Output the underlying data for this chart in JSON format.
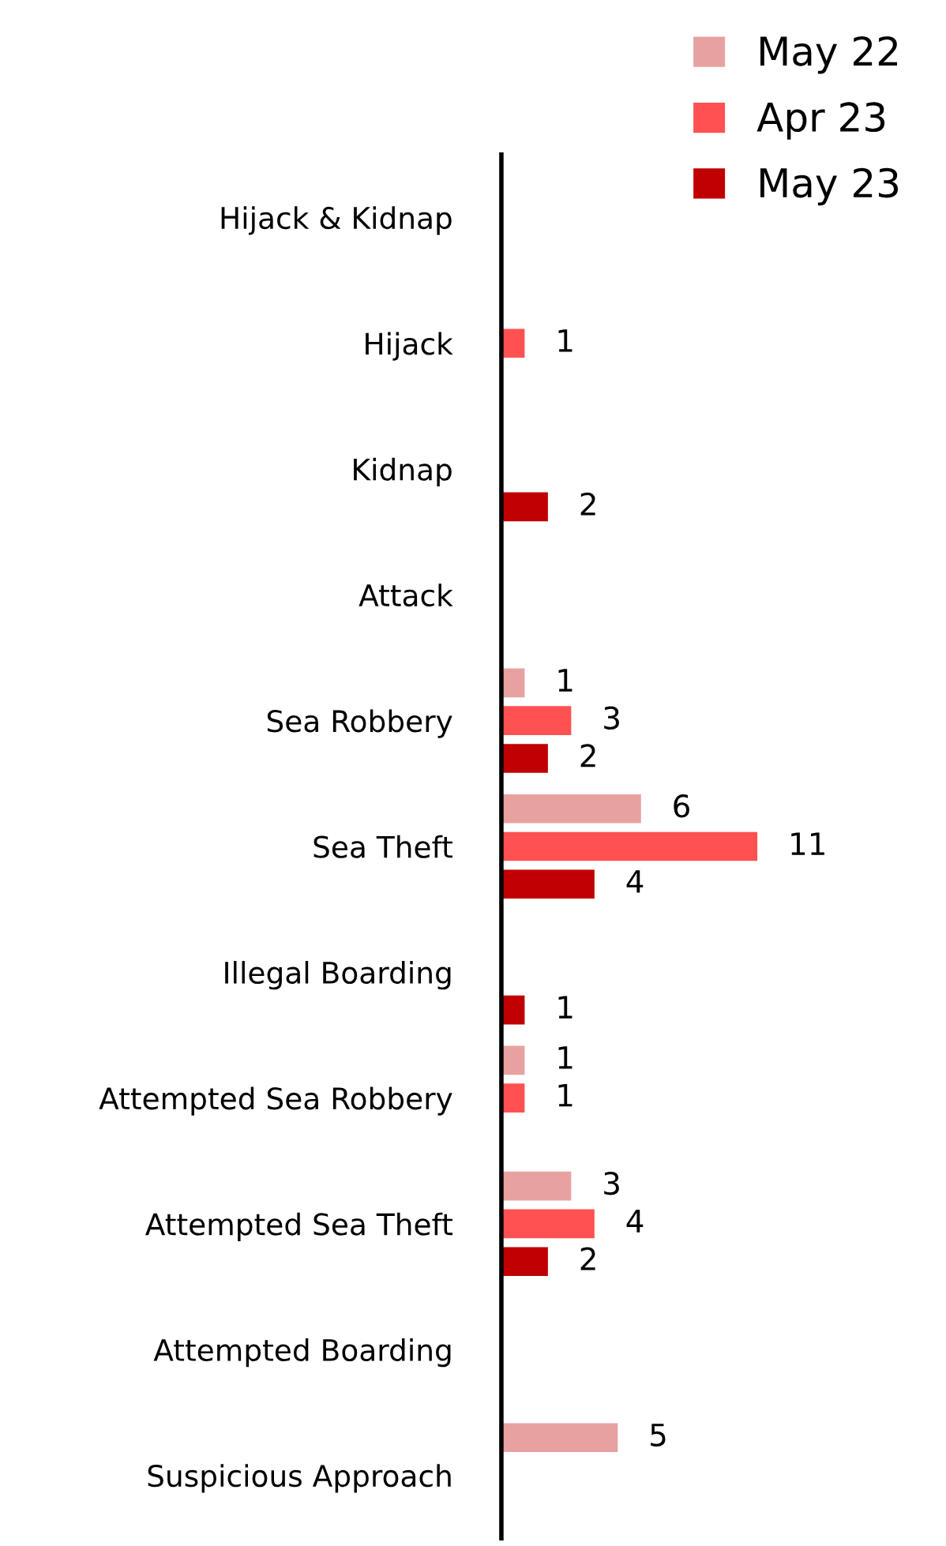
{
  "chart_data": {
    "type": "bar",
    "orientation": "horizontal",
    "categories": [
      "Hijack & Kidnap",
      "Hijack",
      "Kidnap",
      "Attack",
      "Sea Robbery",
      "Sea Theft",
      "Illegal Boarding",
      "Attempted Sea Robbery",
      "Attempted Sea Theft",
      "Attempted Boarding",
      "Suspicious Approach"
    ],
    "series": [
      {
        "name": "May 22",
        "color": "#e8a1a1",
        "values": [
          null,
          null,
          null,
          null,
          1,
          6,
          null,
          1,
          3,
          null,
          5
        ]
      },
      {
        "name": "Apr 23",
        "color": "#ff5151",
        "values": [
          null,
          1,
          null,
          null,
          3,
          11,
          null,
          1,
          4,
          null,
          null
        ]
      },
      {
        "name": "May 23",
        "color": "#c00000",
        "values": [
          null,
          null,
          2,
          null,
          2,
          4,
          1,
          null,
          2,
          null,
          null
        ]
      }
    ],
    "data_labels": true,
    "legend": "top right",
    "tick_labels": "y",
    "grid": false
  }
}
